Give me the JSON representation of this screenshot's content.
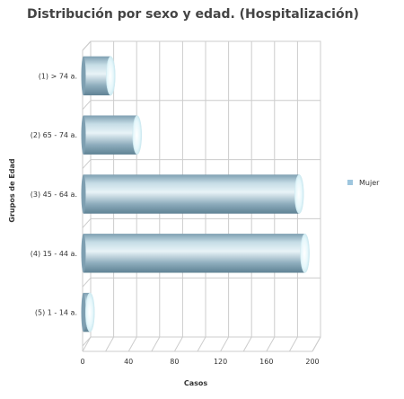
{
  "chart_data": {
    "type": "bar",
    "orientation": "horizontal",
    "title": "Distribución por sexo y edad. (Hospitalización)",
    "xlabel": "Casos",
    "ylabel": "Grupos de Edad",
    "categories": [
      "(1) > 74 a.",
      "(2) 65 - 74 a.",
      "(3) 45 - 64 a.",
      "(4) 15 - 44 a.",
      "(5) 1 - 14 a."
    ],
    "series": [
      {
        "name": "Mujer",
        "values": [
          22,
          45,
          186,
          191,
          4
        ]
      }
    ],
    "xlim": [
      0,
      200
    ],
    "xticks": [
      0,
      40,
      80,
      120,
      160,
      200
    ],
    "grid": true,
    "legend_position": "right",
    "colors": {
      "bar": "#9fbfcc",
      "bar_dark": "#6c8fa1",
      "legend": "#9ec6de",
      "grid": "#cccccc"
    }
  }
}
